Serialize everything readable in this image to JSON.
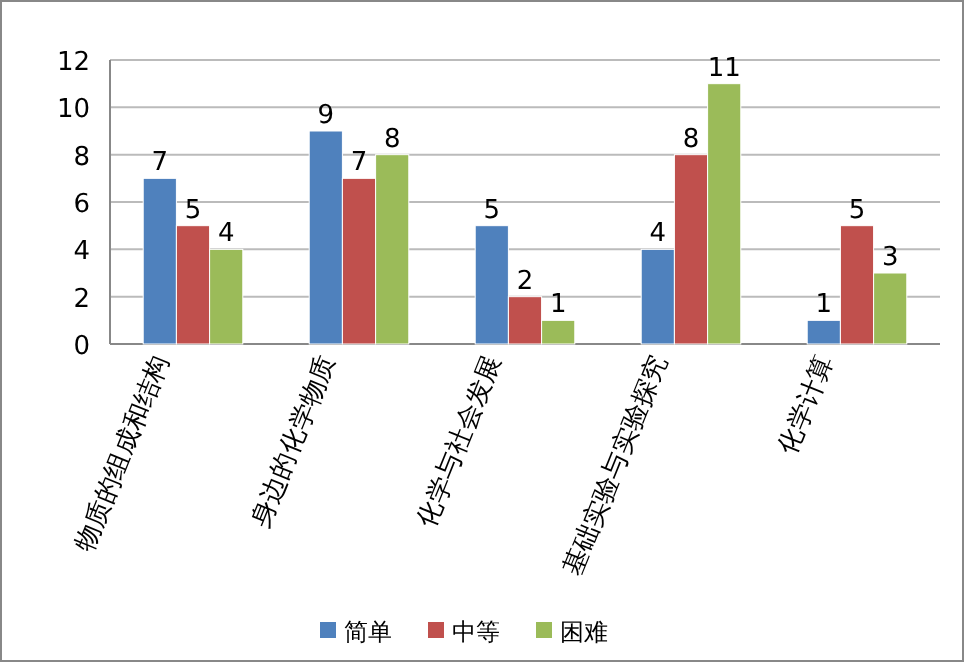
{
  "chart_data": {
    "type": "bar",
    "categories": [
      "物质的组成和结构",
      "身边的化学物质",
      "化学与社会发展",
      "基础实验与实验探究",
      "化学计算"
    ],
    "series": [
      {
        "name": "简单",
        "color": "#4f81bd",
        "values": [
          7,
          9,
          5,
          4,
          1
        ]
      },
      {
        "name": "中等",
        "color": "#c0504d",
        "values": [
          5,
          7,
          2,
          8,
          5
        ]
      },
      {
        "name": "困难",
        "color": "#9bbb59",
        "values": [
          4,
          8,
          1,
          11,
          3
        ]
      }
    ],
    "ylim": [
      0,
      12
    ],
    "yticks": [
      0,
      2,
      4,
      6,
      8,
      10,
      12
    ],
    "grid": "y",
    "legend": "bottom",
    "data_labels": true
  }
}
